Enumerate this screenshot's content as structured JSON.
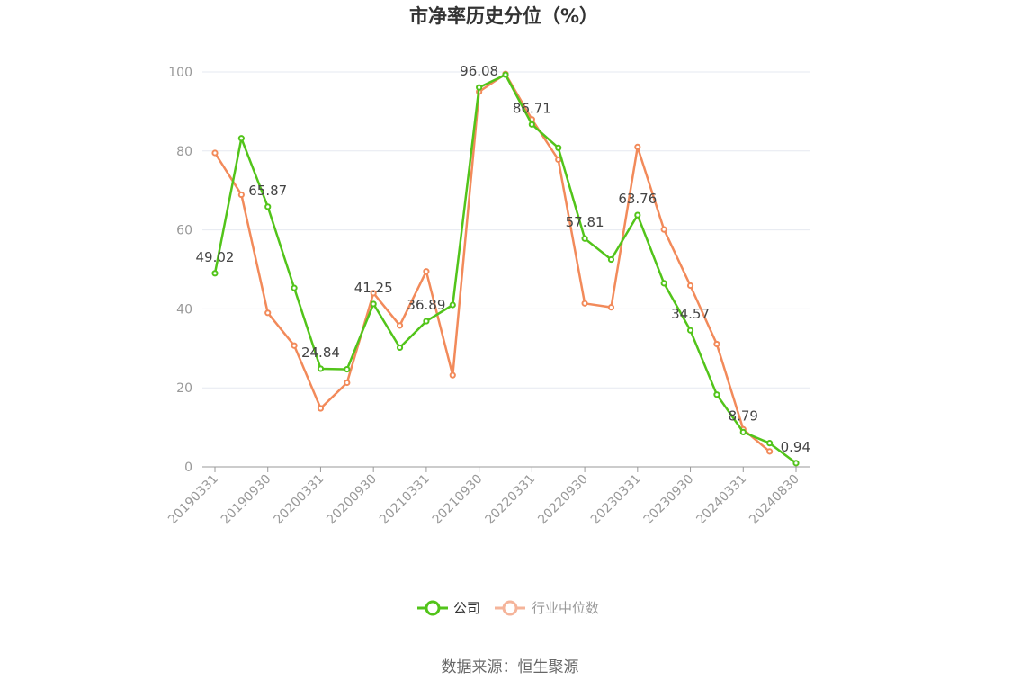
{
  "chart_data": {
    "type": "line",
    "title": "市净率历史分位（%）",
    "ylim": [
      0,
      100
    ],
    "y_ticks": [
      0,
      20,
      40,
      60,
      80,
      100
    ],
    "x": [
      "20190331",
      "20190630",
      "20190930",
      "20191231",
      "20200331",
      "20200630",
      "20200930",
      "20201231",
      "20210331",
      "20210630",
      "20210930",
      "20211231",
      "20220331",
      "20220630",
      "20220930",
      "20221231",
      "20230331",
      "20230630",
      "20230930",
      "20231231",
      "20240331",
      "20240630",
      "20240830"
    ],
    "x_tick_labels": [
      "20190331",
      "20190930",
      "20200331",
      "20200930",
      "20210331",
      "20210930",
      "20220331",
      "20220930",
      "20230331",
      "20230930",
      "20240331",
      "20240830"
    ],
    "grid": true,
    "legend_position": "bottom",
    "series": [
      {
        "name": "公司",
        "color": "#52c41a",
        "values": [
          49.02,
          83.2,
          65.87,
          45.3,
          24.84,
          24.7,
          41.25,
          30.2,
          36.89,
          41.0,
          96.08,
          99.3,
          86.71,
          80.8,
          57.81,
          52.5,
          63.76,
          46.5,
          34.57,
          18.3,
          8.79,
          6.0,
          0.94
        ],
        "labels": [
          "49.02",
          null,
          "65.87",
          null,
          "24.84",
          null,
          "41.25",
          null,
          "36.89",
          null,
          "96.08",
          null,
          "86.71",
          null,
          "57.81",
          null,
          "63.76",
          null,
          "34.57",
          null,
          "8.79",
          null,
          "0.94"
        ]
      },
      {
        "name": "行业中位数",
        "color": "#f28a5a",
        "values": [
          79.5,
          68.9,
          39.0,
          30.7,
          14.8,
          21.3,
          44.0,
          35.8,
          49.5,
          23.2,
          95.0,
          99.5,
          88.0,
          77.8,
          41.4,
          40.4,
          81.0,
          60.1,
          45.9,
          31.1,
          9.5,
          3.9,
          null
        ]
      }
    ]
  },
  "legend": {
    "items": [
      {
        "label": "公司",
        "color": "#52c41a"
      },
      {
        "label": "行业中位数",
        "color": "#f5b49a"
      }
    ]
  },
  "source": "数据来源：恒生聚源"
}
